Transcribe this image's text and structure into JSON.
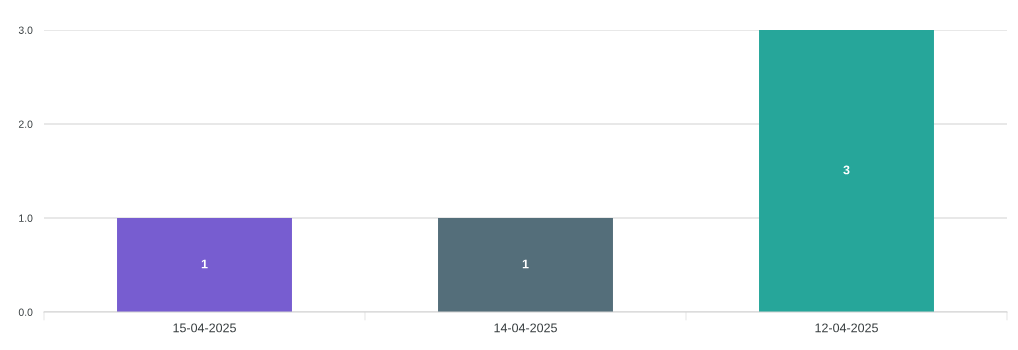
{
  "chart_data": {
    "type": "bar",
    "categories": [
      "15-04-2025",
      "14-04-2025",
      "12-04-2025"
    ],
    "values": [
      1,
      1,
      3
    ],
    "colors": [
      "#775dd0",
      "#546e7a",
      "#26a69a"
    ],
    "ylim": [
      0,
      3
    ],
    "yticks": [
      {
        "value": 0,
        "label": "0.0"
      },
      {
        "value": 1,
        "label": "1.0"
      },
      {
        "value": 2,
        "label": "2.0"
      },
      {
        "value": 3,
        "label": "3.0"
      }
    ],
    "grid": "y",
    "data_labels": true,
    "legend": false
  }
}
